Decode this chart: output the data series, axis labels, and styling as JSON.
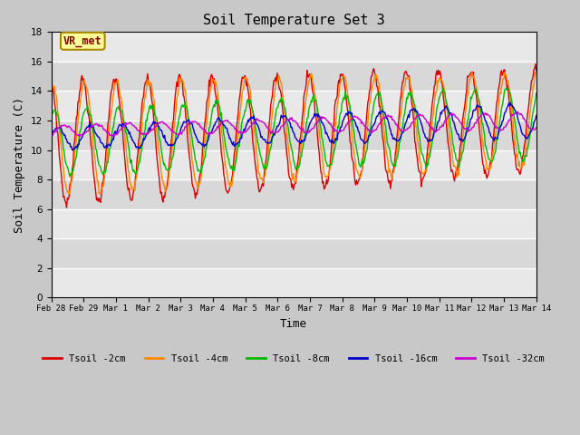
{
  "title": "Soil Temperature Set 3",
  "xlabel": "Time",
  "ylabel": "Soil Temperature (C)",
  "ylim": [
    0,
    18
  ],
  "yticks": [
    0,
    2,
    4,
    6,
    8,
    10,
    12,
    14,
    16,
    18
  ],
  "fig_bg_color": "#c8c8c8",
  "plot_bg_color": "#e0e0e0",
  "annotation_text": "VR_met",
  "annotation_color": "#8b0000",
  "annotation_bg": "#ffff99",
  "line_colors": {
    "Tsoil -2cm": "#dd0000",
    "Tsoil -4cm": "#ff8800",
    "Tsoil -8cm": "#00bb00",
    "Tsoil -16cm": "#0000cc",
    "Tsoil -32cm": "#cc00cc"
  },
  "date_labels": [
    "Feb 28",
    "Feb 29",
    "Mar 1",
    "Mar 2",
    "Mar 3",
    "Mar 4",
    "Mar 5",
    "Mar 6",
    "Mar 7",
    "Mar 8",
    "Mar 9",
    "Mar 10",
    "Mar 11",
    "Mar 12",
    "Mar 13",
    "Mar 14"
  ],
  "font_family": "monospace",
  "legend_labels": [
    "Tsoil -2cm",
    "Tsoil -4cm",
    "Tsoil -8cm",
    "Tsoil -16cm",
    "Tsoil -32cm"
  ]
}
